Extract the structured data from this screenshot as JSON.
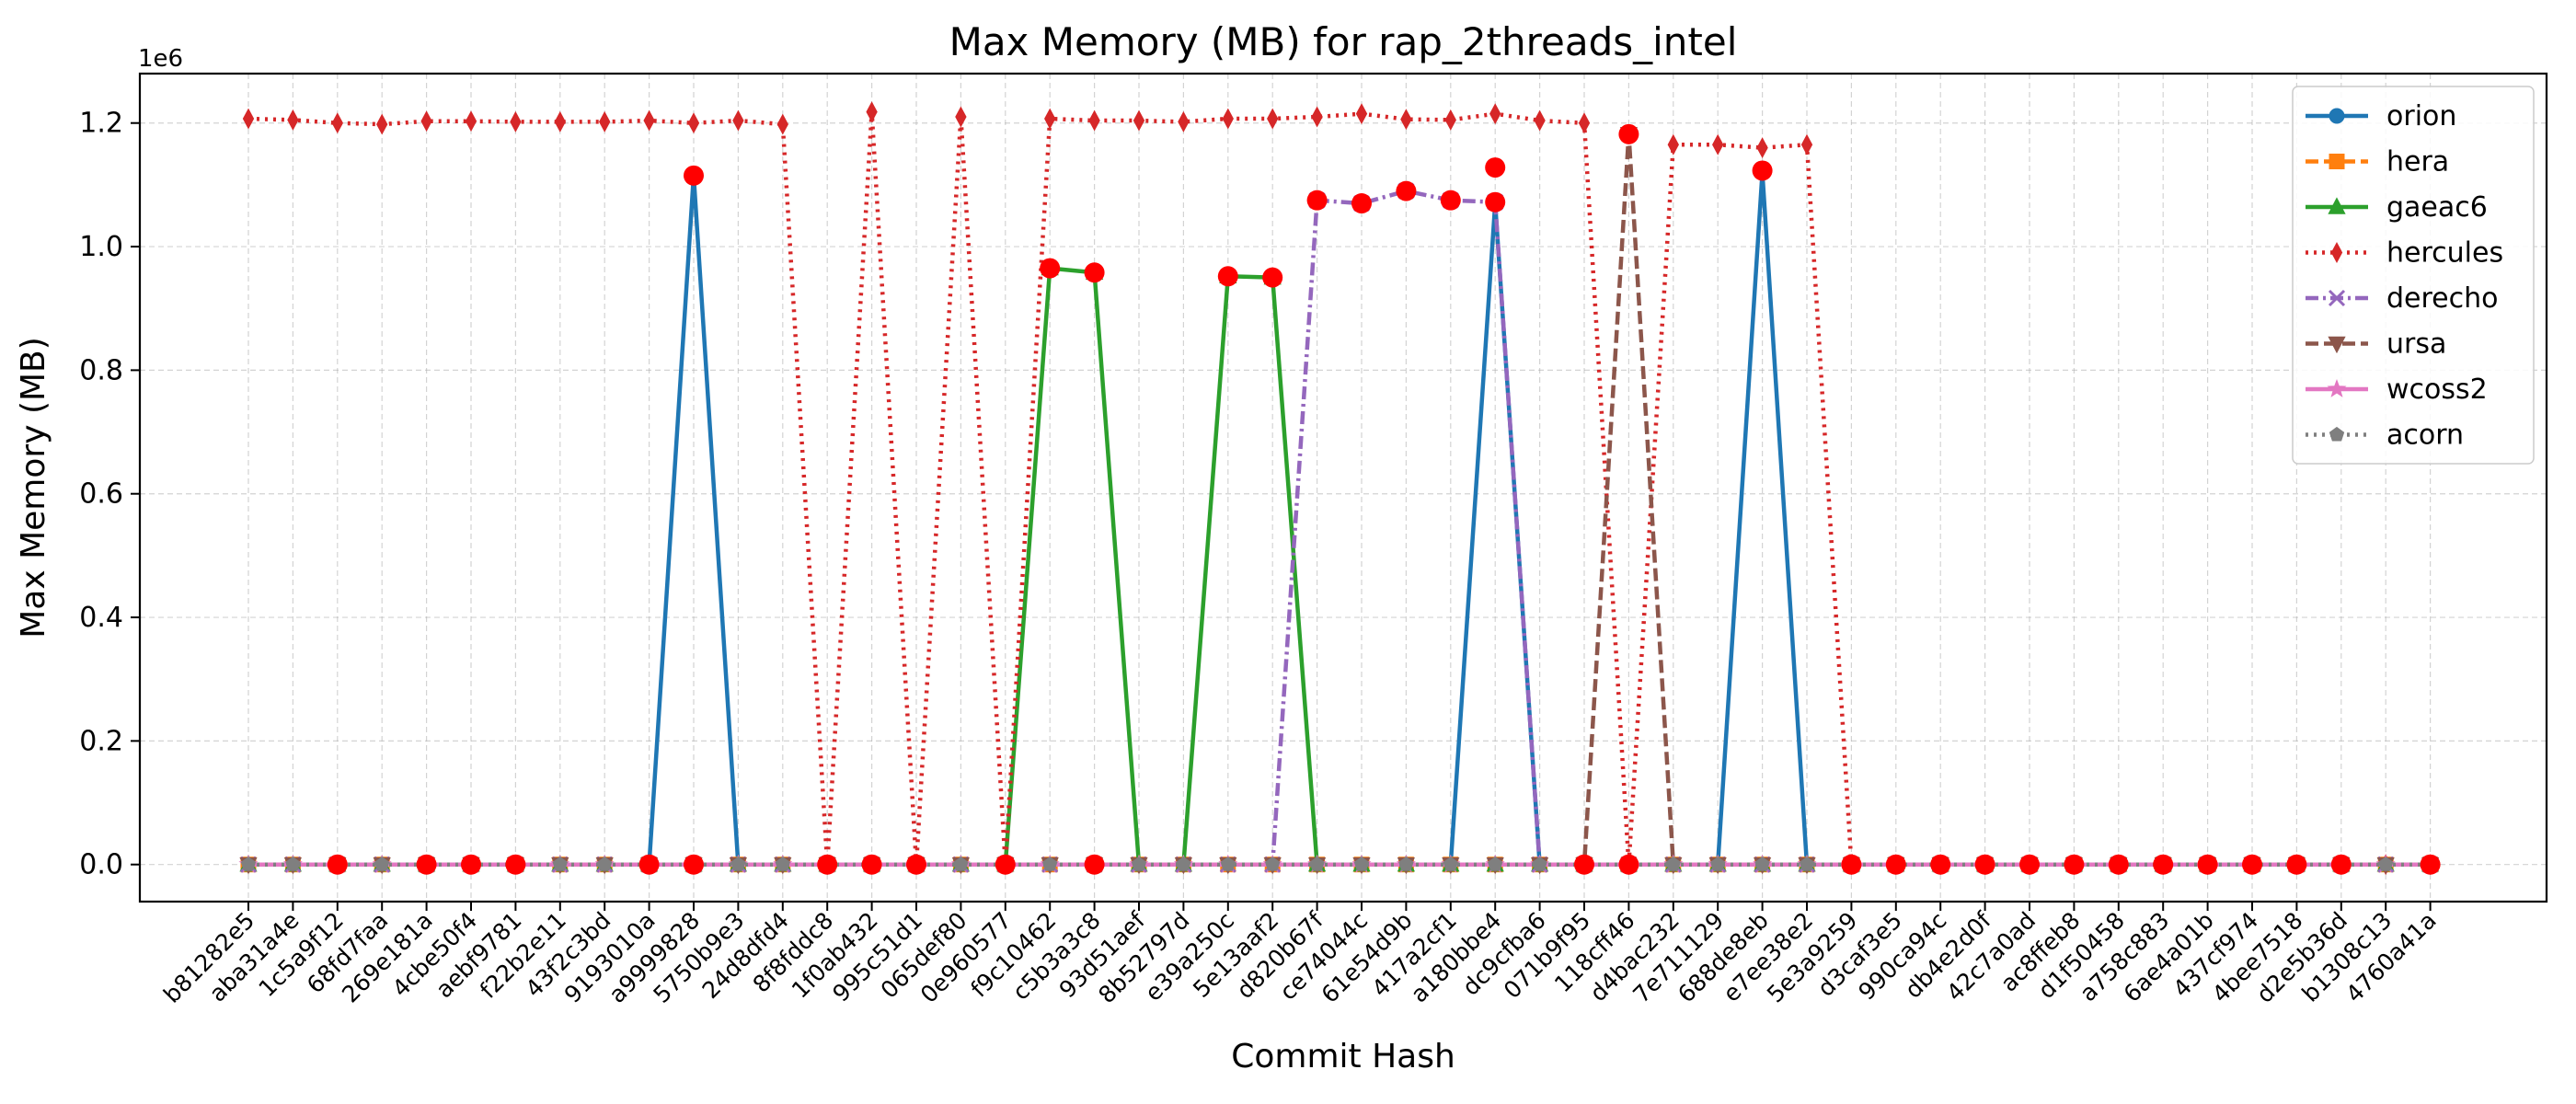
{
  "chart_data": {
    "type": "line",
    "title": "Max Memory (MB) for rap_2threads_intel",
    "xlabel": "Commit Hash",
    "ylabel": "Max Memory (MB)",
    "y_scale_label": "1e6",
    "ylim": [
      -0.06,
      1.28
    ],
    "y_ticks": [
      0.0,
      0.2,
      0.4,
      0.6,
      0.8,
      1.0,
      1.2
    ],
    "y_tick_labels": [
      "0.0",
      "0.2",
      "0.4",
      "0.6",
      "0.8",
      "1.0",
      "1.2"
    ],
    "grid": true,
    "legend_position": "top-right",
    "categories": [
      "b81282e5",
      "aba31a4e",
      "1c5a9f12",
      "68fd7faa",
      "269e181a",
      "4cbe50f4",
      "aebf9781",
      "f22b2e11",
      "43f2c3bd",
      "9193010a",
      "a9999828",
      "5750b9e3",
      "24d8dfd4",
      "8f8fddc8",
      "1f0ab432",
      "995c51d1",
      "065def80",
      "0e960577",
      "f9c10462",
      "c5b3a3c8",
      "93d51aef",
      "8b52797d",
      "e39a250c",
      "5e13aaf2",
      "d820b67f",
      "ce74044c",
      "61e54d9b",
      "417a2cf1",
      "a180bbe4",
      "dc9cfba6",
      "071b9f95",
      "118cff46",
      "d4bac232",
      "7e711129",
      "688de8eb",
      "e7ee38e2",
      "5e3a9259",
      "d3caf3e5",
      "990ca94c",
      "db4e2d0f",
      "42c7a0ad",
      "ac8ffeb8",
      "d1f50458",
      "a758c883",
      "6ae4a01b",
      "437cf974",
      "4bee7518",
      "d2e5b36d",
      "b1308c13",
      "4760a41a"
    ],
    "series": [
      {
        "name": "orion",
        "color": "#1f77b4",
        "dash": "solid",
        "marker": "circle",
        "values": [
          0,
          0,
          0,
          0,
          0,
          0,
          0,
          0,
          0,
          0,
          1.115,
          0,
          0,
          0,
          0,
          0,
          0,
          0,
          0,
          0,
          0,
          0,
          0,
          0,
          0,
          0,
          0,
          0,
          1.07,
          0,
          0,
          0,
          0,
          0,
          1.12,
          0,
          0,
          0,
          0,
          0,
          0,
          0,
          0,
          0,
          0,
          0,
          0,
          0,
          0,
          0
        ]
      },
      {
        "name": "hera",
        "color": "#ff7f0e",
        "dash": "dashed",
        "marker": "square",
        "values": [
          0,
          0,
          0,
          0,
          0,
          0,
          0,
          0,
          0,
          0,
          0,
          0,
          0,
          0,
          0,
          0,
          0,
          0,
          0,
          0,
          0,
          0,
          0,
          0,
          0,
          0,
          0,
          0,
          0,
          0,
          0,
          0,
          0,
          0,
          0,
          0,
          0,
          0,
          0,
          0,
          0,
          0,
          0,
          0,
          0,
          0,
          0,
          0,
          0,
          0
        ]
      },
      {
        "name": "gaeac6",
        "color": "#2ca02c",
        "dash": "solid",
        "marker": "triangle-up",
        "values": [
          0,
          0,
          0,
          0,
          0,
          0,
          0,
          0,
          0,
          0,
          0,
          0,
          0,
          0,
          0,
          0,
          0,
          0,
          0.965,
          0.958,
          0,
          0,
          0.952,
          0.95,
          0,
          0,
          0,
          0,
          0,
          0,
          0,
          0,
          0,
          0,
          0,
          0,
          0,
          0,
          0,
          0,
          0,
          0,
          0,
          0,
          0,
          0,
          0,
          0,
          0,
          0
        ]
      },
      {
        "name": "hercules",
        "color": "#d62728",
        "dash": "dotted",
        "marker": "thin-diamond",
        "values": [
          1.207,
          1.205,
          1.2,
          1.198,
          1.203,
          1.203,
          1.202,
          1.202,
          1.202,
          1.204,
          1.2,
          1.204,
          1.198,
          0,
          1.218,
          0,
          1.21,
          0,
          1.207,
          1.204,
          1.204,
          1.202,
          1.207,
          1.207,
          1.21,
          1.215,
          1.206,
          1.205,
          1.215,
          1.204,
          1.2,
          0,
          1.165,
          1.165,
          1.16,
          1.165,
          0,
          0,
          0,
          0,
          0,
          0,
          0,
          0,
          0,
          0,
          0,
          0,
          0,
          0
        ]
      },
      {
        "name": "derecho",
        "color": "#9467bd",
        "dash": "dashdot",
        "marker": "x",
        "values": [
          0,
          0,
          0,
          0,
          0,
          0,
          0,
          0,
          0,
          0,
          0,
          0,
          0,
          0,
          0,
          0,
          0,
          0,
          0,
          0,
          0,
          0,
          0,
          0,
          1.075,
          1.07,
          1.09,
          1.075,
          1.072,
          0,
          0,
          0,
          0,
          0,
          0,
          0,
          0,
          0,
          0,
          0,
          0,
          0,
          0,
          0,
          0,
          0,
          0,
          0,
          0,
          0
        ]
      },
      {
        "name": "ursa",
        "color": "#8c564b",
        "dash": "dashed",
        "marker": "triangle-down",
        "values": [
          0,
          0,
          0,
          0,
          0,
          0,
          0,
          0,
          0,
          0,
          0,
          0,
          0,
          0,
          0,
          0,
          0,
          0,
          0,
          0,
          0,
          0,
          0,
          0,
          0,
          0,
          0,
          0,
          0,
          0,
          0,
          1.182,
          0,
          0,
          0,
          0,
          0,
          0,
          0,
          0,
          0,
          0,
          0,
          0,
          0,
          0,
          0,
          0,
          0,
          0
        ]
      },
      {
        "name": "wcoss2",
        "color": "#e377c2",
        "dash": "solid",
        "marker": "star",
        "values": [
          0,
          0,
          0,
          0,
          0,
          0,
          0,
          0,
          0,
          0,
          0,
          0,
          0,
          0,
          0,
          0,
          0,
          0,
          0,
          0,
          0,
          0,
          0,
          0,
          0,
          0,
          0,
          0,
          0,
          0,
          0,
          0,
          0,
          0,
          0,
          0,
          0,
          0,
          0,
          0,
          0,
          0,
          0,
          0,
          0,
          0,
          0,
          0,
          0,
          0
        ]
      },
      {
        "name": "acorn",
        "color": "#7f7f7f",
        "dash": "dotted",
        "marker": "pentagon",
        "values": [
          0,
          0,
          0,
          0,
          0,
          0,
          0,
          0,
          0,
          0,
          0,
          0,
          0,
          0,
          0,
          0,
          0,
          0,
          0,
          0,
          0,
          0,
          0,
          0,
          0,
          0,
          0,
          0,
          0,
          0,
          0,
          0,
          0,
          0,
          0,
          0,
          0,
          0,
          0,
          0,
          0,
          0,
          0,
          0,
          0,
          0,
          0,
          0,
          0,
          0
        ]
      }
    ],
    "highlight_color": "#ff0000",
    "highlights": [
      {
        "x": "1c5a9f12",
        "y": 0
      },
      {
        "x": "269e181a",
        "y": 0
      },
      {
        "x": "4cbe50f4",
        "y": 0
      },
      {
        "x": "aebf9781",
        "y": 0
      },
      {
        "x": "9193010a",
        "y": 0
      },
      {
        "x": "a9999828",
        "y": 1.115
      },
      {
        "x": "a9999828",
        "y": 0
      },
      {
        "x": "8f8fddc8",
        "y": 0
      },
      {
        "x": "1f0ab432",
        "y": 0
      },
      {
        "x": "995c51d1",
        "y": 0
      },
      {
        "x": "0e960577",
        "y": 0
      },
      {
        "x": "f9c10462",
        "y": 0.965
      },
      {
        "x": "c5b3a3c8",
        "y": 0.958
      },
      {
        "x": "c5b3a3c8",
        "y": 0
      },
      {
        "x": "e39a250c",
        "y": 0.952
      },
      {
        "x": "5e13aaf2",
        "y": 0.95
      },
      {
        "x": "d820b67f",
        "y": 1.075
      },
      {
        "x": "ce74044c",
        "y": 1.07
      },
      {
        "x": "61e54d9b",
        "y": 1.09
      },
      {
        "x": "417a2cf1",
        "y": 1.075
      },
      {
        "x": "a180bbe4",
        "y": 1.128
      },
      {
        "x": "a180bbe4",
        "y": 1.072
      },
      {
        "x": "071b9f95",
        "y": 0
      },
      {
        "x": "118cff46",
        "y": 1.182
      },
      {
        "x": "118cff46",
        "y": 0
      },
      {
        "x": "688de8eb",
        "y": 1.123
      },
      {
        "x": "5e3a9259",
        "y": 0
      },
      {
        "x": "d3caf3e5",
        "y": 0
      },
      {
        "x": "990ca94c",
        "y": 0
      },
      {
        "x": "db4e2d0f",
        "y": 0
      },
      {
        "x": "42c7a0ad",
        "y": 0
      },
      {
        "x": "ac8ffeb8",
        "y": 0
      },
      {
        "x": "d1f50458",
        "y": 0
      },
      {
        "x": "a758c883",
        "y": 0
      },
      {
        "x": "6ae4a01b",
        "y": 0
      },
      {
        "x": "437cf974",
        "y": 0
      },
      {
        "x": "4bee7518",
        "y": 0
      },
      {
        "x": "d2e5b36d",
        "y": 0
      },
      {
        "x": "4760a41a",
        "y": 0
      }
    ]
  }
}
